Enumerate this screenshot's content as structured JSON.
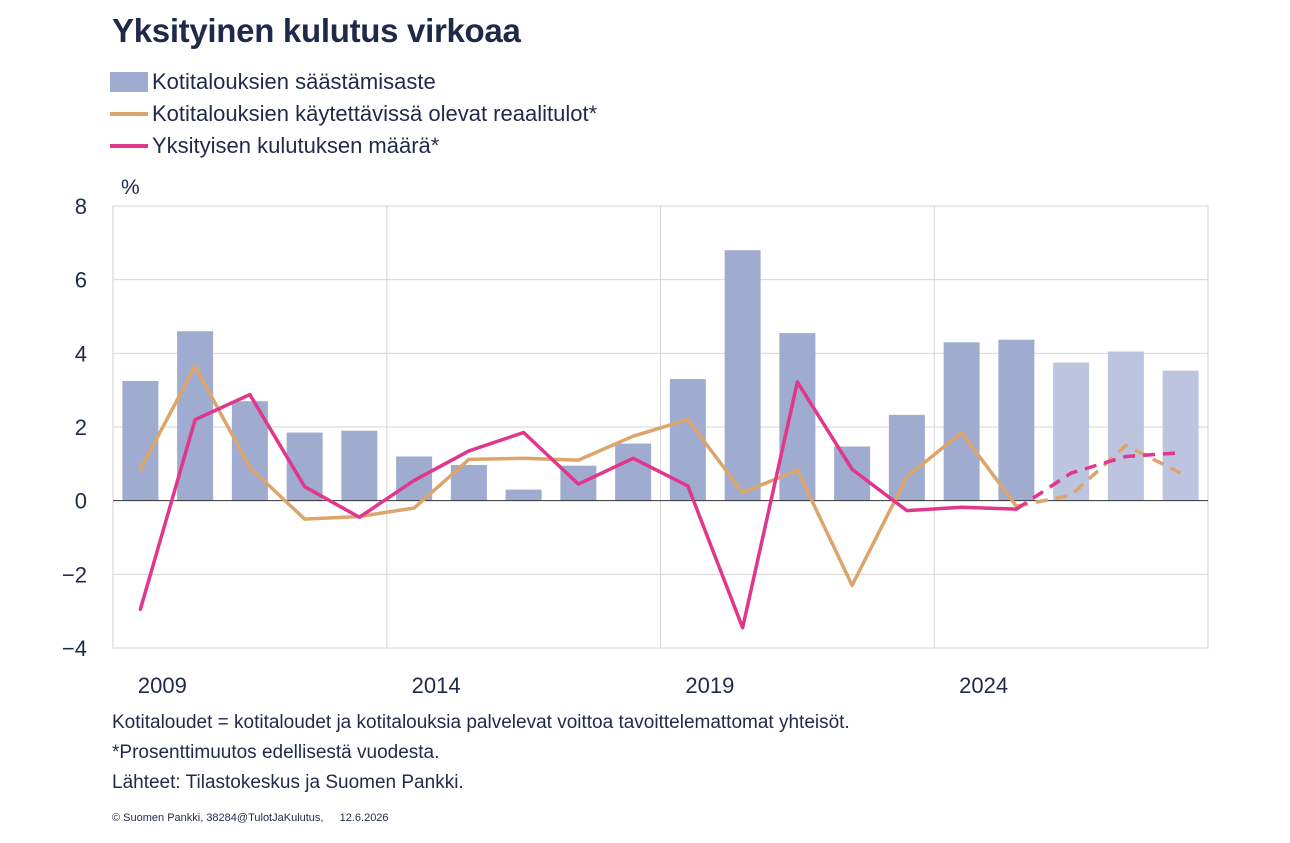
{
  "title": "Yksityinen kulutus virkoaa",
  "chart_data": {
    "type": "bar",
    "title": "Yksityinen kulutus virkoaa",
    "ylabel": "%",
    "ylim": [
      -4,
      8
    ],
    "yticks": [
      "8",
      "6",
      "4",
      "2",
      "0",
      "−2",
      "−4"
    ],
    "ytick_values": [
      8,
      6,
      4,
      2,
      0,
      -2,
      -4
    ],
    "categories": [
      2009,
      2010,
      2011,
      2012,
      2013,
      2014,
      2015,
      2016,
      2017,
      2018,
      2019,
      2020,
      2021,
      2022,
      2023,
      2024,
      2025,
      2026,
      2027,
      2028
    ],
    "xtick_labels": [
      "2009",
      "2014",
      "2019",
      "2024"
    ],
    "xtick_values": [
      2009,
      2014,
      2019,
      2024
    ],
    "legend_placement": "top-left",
    "grid": true,
    "forecast_from": 2025,
    "series": [
      {
        "name": "Kotitalouksien säästämisaste",
        "type": "bar",
        "color": "#9facd0",
        "forecast_color": "#bcc4e0",
        "values": [
          3.25,
          4.6,
          2.7,
          1.85,
          1.9,
          1.2,
          0.97,
          0.3,
          0.95,
          1.55,
          3.3,
          6.8,
          4.55,
          1.47,
          2.33,
          4.3,
          4.37,
          3.75,
          4.05,
          3.53
        ]
      },
      {
        "name": "Kotitalouksien käytettävissä olevat reaalitulot*",
        "type": "line",
        "color": "#dba56c",
        "values": [
          0.85,
          3.65,
          0.9,
          -0.5,
          -0.43,
          -0.2,
          1.12,
          1.15,
          1.1,
          1.75,
          2.2,
          0.22,
          0.83,
          -2.3,
          0.65,
          1.85,
          -0.15,
          0.15,
          1.5,
          0.75
        ]
      },
      {
        "name": "Yksityisen kulutuksen määrä*",
        "type": "line",
        "color": "#e0368c",
        "values": [
          -2.95,
          2.2,
          2.88,
          0.38,
          -0.45,
          0.55,
          1.35,
          1.85,
          0.45,
          1.15,
          0.4,
          -3.45,
          3.22,
          0.85,
          -0.27,
          -0.18,
          -0.23,
          0.75,
          1.2,
          1.3
        ]
      }
    ]
  },
  "notes": [
    "Kotitaloudet = kotitaloudet ja kotitalouksia palvelevat voittoa tavoittelemattomat yhteisöt.",
    "*Prosenttimuutos edellisestä vuodesta.",
    "Lähteet: Tilastokeskus ja Suomen Pankki."
  ],
  "copyright": "© Suomen Pankki, 38284@TulotJaKulutus,",
  "date": "12.6.2026"
}
